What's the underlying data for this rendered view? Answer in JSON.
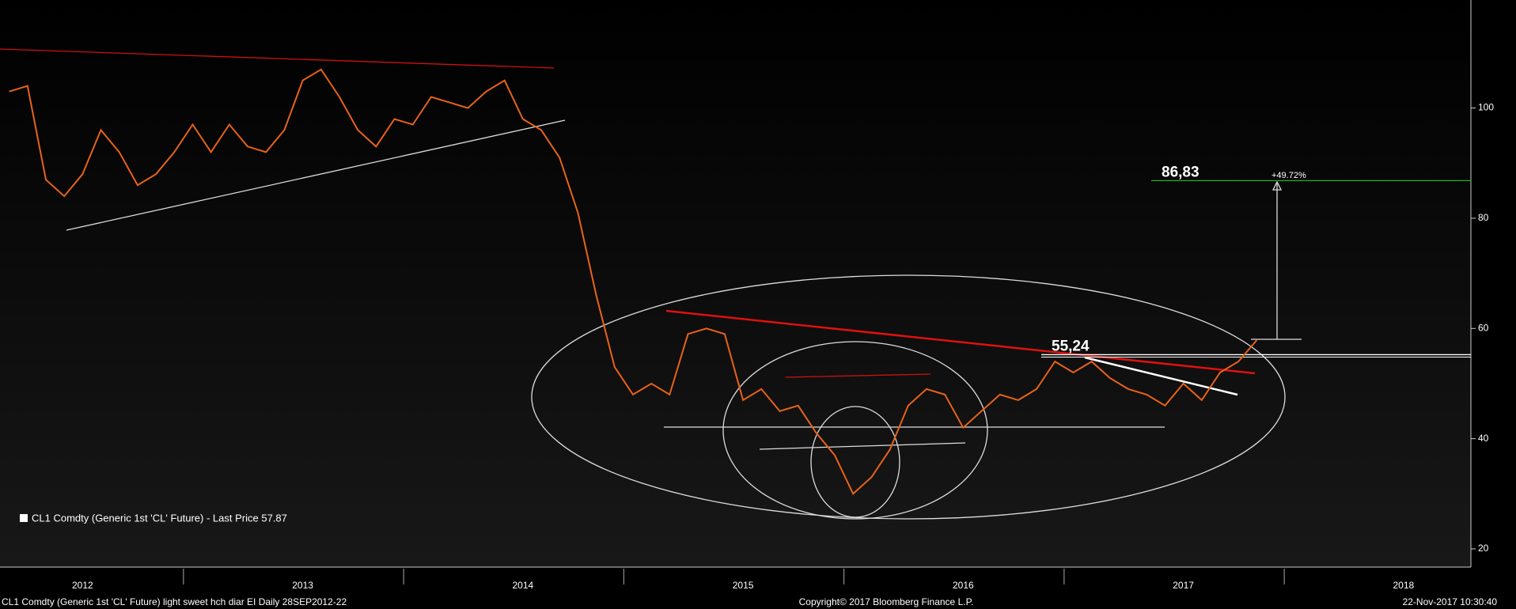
{
  "chart_data": {
    "type": "line",
    "categories": [
      null,
      null,
      null,
      null,
      "2012",
      null,
      null,
      null,
      null,
      null,
      null,
      null,
      null,
      null,
      null,
      null,
      "2013",
      null,
      null,
      null,
      null,
      null,
      null,
      null,
      null,
      null,
      null,
      null,
      "2014",
      null,
      null,
      null,
      null,
      null,
      null,
      null,
      null,
      null,
      null,
      null,
      "2015",
      null,
      null,
      null,
      null,
      null,
      null,
      null,
      null,
      null,
      null,
      null,
      "2016",
      null,
      null,
      null,
      null,
      null,
      null,
      null,
      null,
      null,
      null,
      null,
      "2017",
      null,
      null,
      null,
      null,
      null,
      null,
      null,
      null,
      null,
      null,
      null,
      "2018",
      null,
      null,
      null
    ],
    "series": [
      {
        "name": "CL1 Comdty (Generic 1st 'CL' Future) - Last Price 57.87",
        "color": "#e8621a",
        "values": [
          103,
          104,
          87,
          84,
          88,
          96,
          92,
          86,
          88,
          92,
          97,
          92,
          97,
          93,
          92,
          96,
          105,
          107,
          102,
          96,
          93,
          98,
          97,
          102,
          101,
          100,
          103,
          105,
          98,
          96,
          91,
          81,
          66,
          53,
          48,
          50,
          48,
          59,
          60,
          59,
          47,
          49,
          45,
          46,
          41,
          37,
          30,
          33,
          38,
          46,
          49,
          48,
          42,
          45,
          48,
          47,
          49,
          54,
          52,
          54,
          51,
          49,
          48,
          46,
          50,
          47,
          52,
          54,
          57.87,
          null,
          null,
          null,
          null,
          null,
          null,
          null,
          null,
          null,
          null,
          null
        ]
      }
    ],
    "ylim": [
      16.7,
      119.6
    ],
    "yticks": [
      20,
      40,
      60,
      80,
      100
    ],
    "levels": [
      {
        "value": 86.83,
        "label": "86,83",
        "color": "#1db31d"
      },
      {
        "value": 55.24,
        "label": "55,24",
        "color": "#ffffff"
      }
    ],
    "target_change": "+49.72%"
  },
  "footer": {
    "left": "CL1 Comdty (Generic 1st 'CL' Future) light sweet hch diar EI  Daily 28SEP2012-22",
    "center": "Copyright© 2017 Bloomberg Finance L.P.",
    "right": "22-Nov-2017 10:30:40"
  }
}
